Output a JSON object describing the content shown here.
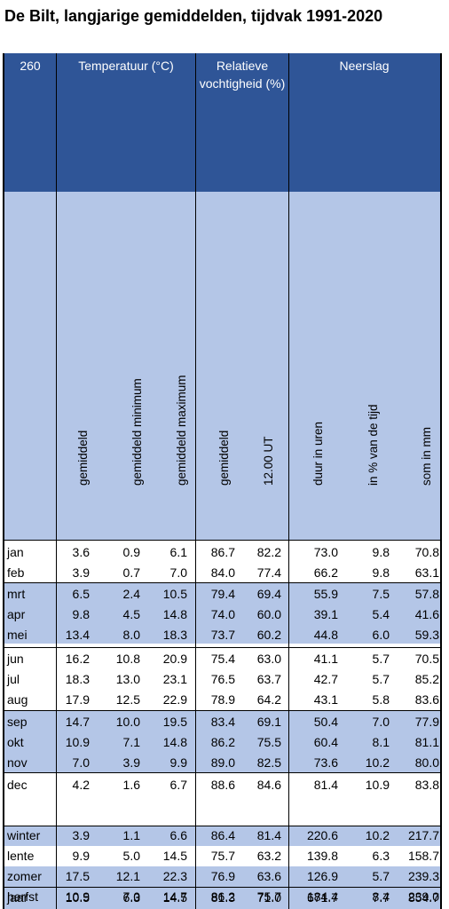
{
  "title": "De Bilt, langjarige gemiddelden, tijdvak 1991-2020",
  "header": {
    "station": "260",
    "temperature": "Temperatuur (°C)",
    "humidity": "Relatieve vochtigheid (%)",
    "precipitation": "Neerslag"
  },
  "subheaders": [
    "gemiddeld",
    "gemiddeld minimum",
    "gemiddeld maximum",
    "gemiddeld",
    "12.00 UT",
    "duur in uren",
    "in % van de tijd",
    "som in mm"
  ],
  "months": [
    [
      "jan",
      "3.6",
      "0.9",
      "6.1",
      "86.7",
      "82.2",
      "73.0",
      "9.8",
      "70.8"
    ],
    [
      "feb",
      "3.9",
      "0.7",
      "7.0",
      "84.0",
      "77.4",
      "66.2",
      "9.8",
      "63.1"
    ],
    [
      "mrt",
      "6.5",
      "2.4",
      "10.5",
      "79.4",
      "69.4",
      "55.9",
      "7.5",
      "57.8"
    ],
    [
      "apr",
      "9.8",
      "4.5",
      "14.8",
      "74.0",
      "60.0",
      "39.1",
      "5.4",
      "41.6"
    ],
    [
      "mei",
      "13.4",
      "8.0",
      "18.3",
      "73.7",
      "60.2",
      "44.8",
      "6.0",
      "59.3"
    ],
    [
      "jun",
      "16.2",
      "10.8",
      "20.9",
      "75.4",
      "63.0",
      "41.1",
      "5.7",
      "70.5"
    ],
    [
      "jul",
      "18.3",
      "13.0",
      "23.1",
      "76.5",
      "63.7",
      "42.7",
      "5.7",
      "85.2"
    ],
    [
      "aug",
      "17.9",
      "12.5",
      "22.9",
      "78.9",
      "64.2",
      "43.1",
      "5.8",
      "83.6"
    ],
    [
      "sep",
      "14.7",
      "10.0",
      "19.5",
      "83.4",
      "69.1",
      "50.4",
      "7.0",
      "77.9"
    ],
    [
      "okt",
      "10.9",
      "7.1",
      "14.8",
      "86.2",
      "75.5",
      "60.4",
      "8.1",
      "81.1"
    ],
    [
      "nov",
      "7.0",
      "3.9",
      "9.9",
      "89.0",
      "82.5",
      "73.6",
      "10.2",
      "80.0"
    ],
    [
      "dec",
      "4.2",
      "1.6",
      "6.7",
      "88.6",
      "84.6",
      "81.4",
      "10.9",
      "83.8"
    ]
  ],
  "seasons": [
    [
      "winter",
      "3.9",
      "1.1",
      "6.6",
      "86.4",
      "81.4",
      "220.6",
      "10.2",
      "217.7"
    ],
    [
      "lente",
      "9.9",
      "5.0",
      "14.5",
      "75.7",
      "63.2",
      "139.8",
      "6.3",
      "158.7"
    ],
    [
      "zomer",
      "17.5",
      "12.1",
      "22.3",
      "76.9",
      "63.6",
      "126.9",
      "5.7",
      "239.3"
    ],
    [
      "herfst",
      "10.9",
      "7.0",
      "14.7",
      "86.2",
      "75.7",
      "184.4",
      "8.4",
      "239.0"
    ]
  ],
  "year": [
    "jaar",
    "10.5",
    "6.3",
    "14.5",
    "81.3",
    "71.0",
    "671.7",
    "7.7",
    "854.7"
  ],
  "colors": {
    "header_bg": "#2F5597",
    "band_bg": "#B4C6E7",
    "header_text": "#FFFFFF",
    "line": "#000000"
  }
}
